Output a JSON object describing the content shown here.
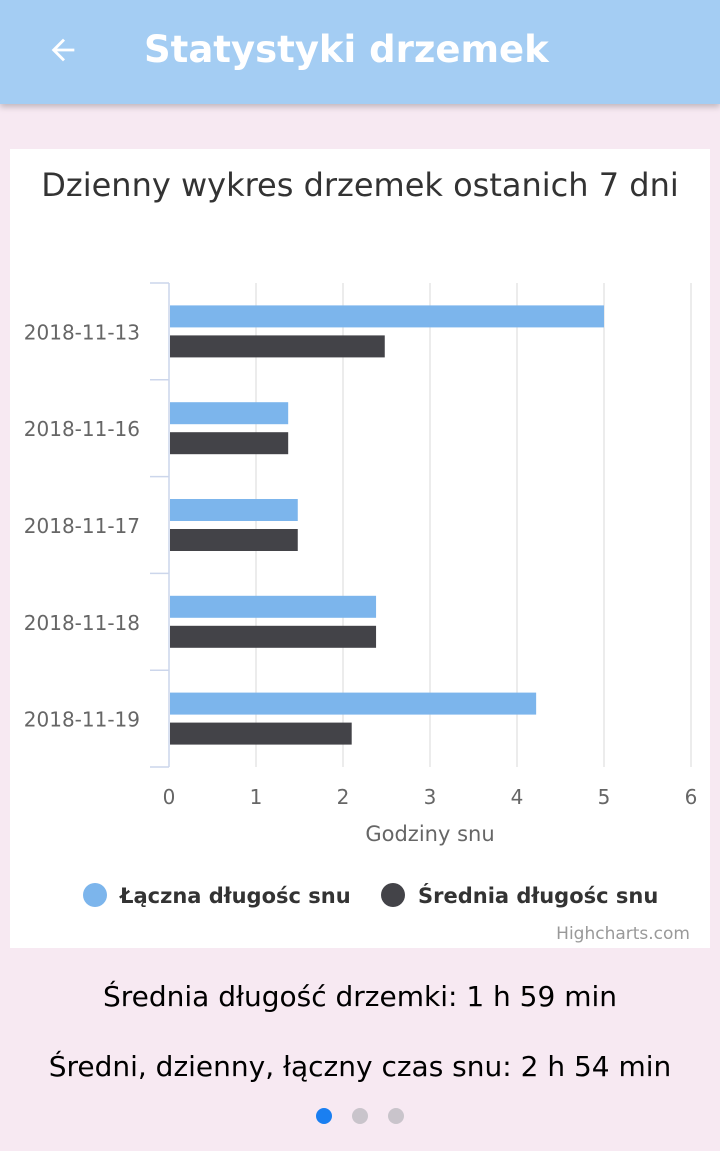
{
  "app_bar": {
    "title": "Statystyki drzemek",
    "back_icon": "arrow-left-icon"
  },
  "colors": {
    "app_bar": "#a4cdf3",
    "background": "#f7e9f2",
    "series_total": "#7cb5ec",
    "series_avg": "#434348",
    "dot_active": "#1a7ff1",
    "dot_inactive": "#c9c4cb"
  },
  "chart_data": {
    "type": "bar",
    "orientation": "horizontal",
    "title": "Dzienny wykres drzemek ostanich 7 dni",
    "categories": [
      "2018-11-13",
      "2018-11-16",
      "2018-11-17",
      "2018-11-18",
      "2018-11-19"
    ],
    "series": [
      {
        "name": "Łączna długośc snu",
        "values": [
          5.0,
          1.37,
          1.48,
          2.38,
          4.22
        ]
      },
      {
        "name": "Średnia długośc snu",
        "values": [
          2.48,
          1.37,
          1.48,
          2.38,
          2.1
        ]
      }
    ],
    "xlabel": "Godziny snu",
    "xlim": [
      0,
      6
    ],
    "xticks": [
      "0",
      "1",
      "2",
      "3",
      "4",
      "5",
      "6"
    ],
    "grid": true,
    "legend_position": "bottom",
    "credits": "Highcharts.com"
  },
  "stats": {
    "avg_nap": "Średnia długość drzemki: 1 h 59 min",
    "avg_daily_total": "Średni, dzienny, łączny czas snu: 2 h 54 min"
  },
  "pager": {
    "count": 3,
    "active": 0
  }
}
